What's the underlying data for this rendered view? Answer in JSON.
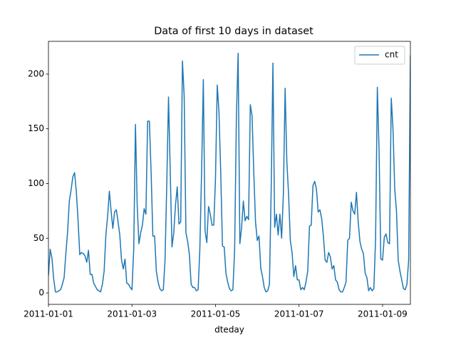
{
  "chart_data": {
    "type": "line",
    "title": "Data of first 10 days in dataset",
    "x_label": "dteday",
    "x": [
      "2011-01-01 00:00",
      "2011-01-01 01:00",
      "2011-01-01 02:00",
      "2011-01-01 03:00",
      "2011-01-01 04:00",
      "2011-01-01 05:00",
      "2011-01-01 06:00",
      "2011-01-01 07:00",
      "2011-01-01 08:00",
      "2011-01-01 09:00",
      "2011-01-01 10:00",
      "2011-01-01 11:00",
      "2011-01-01 12:00",
      "2011-01-01 13:00",
      "2011-01-01 14:00",
      "2011-01-01 15:00",
      "2011-01-01 16:00",
      "2011-01-01 17:00",
      "2011-01-01 18:00",
      "2011-01-01 19:00",
      "2011-01-01 20:00",
      "2011-01-01 21:00",
      "2011-01-01 22:00",
      "2011-01-01 23:00",
      "2011-01-02 00:00",
      "2011-01-02 01:00",
      "2011-01-02 02:00",
      "2011-01-02 03:00",
      "2011-01-02 04:00",
      "2011-01-02 05:00",
      "2011-01-02 06:00",
      "2011-01-02 07:00",
      "2011-01-02 08:00",
      "2011-01-02 09:00",
      "2011-01-02 10:00",
      "2011-01-02 11:00",
      "2011-01-02 12:00",
      "2011-01-02 13:00",
      "2011-01-02 14:00",
      "2011-01-02 15:00",
      "2011-01-02 16:00",
      "2011-01-02 17:00",
      "2011-01-02 18:00",
      "2011-01-02 19:00",
      "2011-01-02 20:00",
      "2011-01-02 21:00",
      "2011-01-02 22:00",
      "2011-01-02 23:00",
      "2011-01-03 00:00",
      "2011-01-03 01:00",
      "2011-01-03 02:00",
      "2011-01-03 03:00",
      "2011-01-03 04:00",
      "2011-01-03 05:00",
      "2011-01-03 06:00",
      "2011-01-03 07:00",
      "2011-01-03 08:00",
      "2011-01-03 09:00",
      "2011-01-03 10:00",
      "2011-01-03 11:00",
      "2011-01-03 12:00",
      "2011-01-03 13:00",
      "2011-01-03 14:00",
      "2011-01-03 15:00",
      "2011-01-03 16:00",
      "2011-01-03 17:00",
      "2011-01-03 18:00",
      "2011-01-03 19:00",
      "2011-01-03 20:00",
      "2011-01-03 21:00",
      "2011-01-03 22:00",
      "2011-01-03 23:00",
      "2011-01-04 00:00",
      "2011-01-04 01:00",
      "2011-01-04 02:00",
      "2011-01-04 03:00",
      "2011-01-04 04:00",
      "2011-01-04 05:00",
      "2011-01-04 06:00",
      "2011-01-04 07:00",
      "2011-01-04 08:00",
      "2011-01-04 09:00",
      "2011-01-04 10:00",
      "2011-01-04 11:00",
      "2011-01-04 12:00",
      "2011-01-04 13:00",
      "2011-01-04 14:00",
      "2011-01-04 15:00",
      "2011-01-04 16:00",
      "2011-01-04 17:00",
      "2011-01-04 18:00",
      "2011-01-04 19:00",
      "2011-01-04 20:00",
      "2011-01-04 21:00",
      "2011-01-04 22:00",
      "2011-01-04 23:00",
      "2011-01-05 00:00",
      "2011-01-05 01:00",
      "2011-01-05 02:00",
      "2011-01-05 03:00",
      "2011-01-05 04:00",
      "2011-01-05 05:00",
      "2011-01-05 06:00",
      "2011-01-05 07:00",
      "2011-01-05 08:00",
      "2011-01-05 09:00",
      "2011-01-05 10:00",
      "2011-01-05 11:00",
      "2011-01-05 12:00",
      "2011-01-05 13:00",
      "2011-01-05 14:00",
      "2011-01-05 15:00",
      "2011-01-05 16:00",
      "2011-01-05 17:00",
      "2011-01-05 18:00",
      "2011-01-05 19:00",
      "2011-01-05 20:00",
      "2011-01-05 21:00",
      "2011-01-05 22:00",
      "2011-01-05 23:00",
      "2011-01-06 00:00",
      "2011-01-06 01:00",
      "2011-01-06 02:00",
      "2011-01-06 03:00",
      "2011-01-06 04:00",
      "2011-01-06 05:00",
      "2011-01-06 06:00",
      "2011-01-06 07:00",
      "2011-01-06 08:00",
      "2011-01-06 09:00",
      "2011-01-06 10:00",
      "2011-01-06 11:00",
      "2011-01-06 12:00",
      "2011-01-06 13:00",
      "2011-01-06 14:00",
      "2011-01-06 15:00",
      "2011-01-06 16:00",
      "2011-01-06 17:00",
      "2011-01-06 18:00",
      "2011-01-06 19:00",
      "2011-01-06 20:00",
      "2011-01-06 21:00",
      "2011-01-06 22:00",
      "2011-01-06 23:00",
      "2011-01-07 00:00",
      "2011-01-07 01:00",
      "2011-01-07 02:00",
      "2011-01-07 03:00",
      "2011-01-07 04:00",
      "2011-01-07 05:00",
      "2011-01-07 06:00",
      "2011-01-07 07:00",
      "2011-01-07 08:00",
      "2011-01-07 09:00",
      "2011-01-07 10:00",
      "2011-01-07 11:00",
      "2011-01-07 12:00",
      "2011-01-07 13:00",
      "2011-01-07 14:00",
      "2011-01-07 15:00",
      "2011-01-07 16:00",
      "2011-01-07 17:00",
      "2011-01-07 18:00",
      "2011-01-07 19:00",
      "2011-01-07 20:00",
      "2011-01-07 21:00",
      "2011-01-07 22:00",
      "2011-01-07 23:00",
      "2011-01-08 00:00",
      "2011-01-08 01:00",
      "2011-01-08 02:00",
      "2011-01-08 03:00",
      "2011-01-08 04:00",
      "2011-01-08 05:00",
      "2011-01-08 06:00",
      "2011-01-08 07:00",
      "2011-01-08 08:00",
      "2011-01-08 09:00",
      "2011-01-08 10:00",
      "2011-01-08 11:00",
      "2011-01-08 12:00",
      "2011-01-08 13:00",
      "2011-01-08 14:00",
      "2011-01-08 15:00",
      "2011-01-08 16:00",
      "2011-01-08 17:00",
      "2011-01-08 18:00",
      "2011-01-08 19:00",
      "2011-01-08 20:00",
      "2011-01-08 21:00",
      "2011-01-08 22:00",
      "2011-01-08 23:00",
      "2011-01-09 00:00",
      "2011-01-09 01:00",
      "2011-01-09 02:00",
      "2011-01-09 03:00",
      "2011-01-09 04:00",
      "2011-01-09 05:00",
      "2011-01-09 06:00",
      "2011-01-09 07:00",
      "2011-01-09 08:00",
      "2011-01-09 09:00",
      "2011-01-09 10:00",
      "2011-01-09 11:00",
      "2011-01-09 12:00",
      "2011-01-09 13:00",
      "2011-01-09 14:00",
      "2011-01-09 15:00",
      "2011-01-09 16:00"
    ],
    "series": [
      {
        "name": "cnt",
        "color": "#1f77b4",
        "values": [
          16,
          40,
          32,
          13,
          1,
          1,
          2,
          3,
          8,
          14,
          36,
          56,
          84,
          94,
          106,
          110,
          93,
          67,
          35,
          37,
          36,
          34,
          28,
          39,
          17,
          17,
          9,
          6,
          3,
          2,
          1,
          8,
          20,
          53,
          70,
          93,
          75,
          59,
          74,
          76,
          65,
          53,
          30,
          22,
          31,
          9,
          8,
          5,
          3,
          40,
          154,
          80,
          45,
          55,
          62,
          77,
          72,
          157,
          157,
          110,
          52,
          52,
          20,
          10,
          4,
          2,
          3,
          30,
          100,
          179,
          110,
          42,
          55,
          80,
          97,
          63,
          65,
          212,
          180,
          55,
          47,
          35,
          8,
          5,
          5,
          2,
          3,
          40,
          110,
          195,
          57,
          46,
          79,
          72,
          62,
          62,
          105,
          190,
          165,
          110,
          43,
          42,
          18,
          10,
          4,
          2,
          3,
          40,
          160,
          219,
          45,
          60,
          84,
          66,
          70,
          67,
          172,
          162,
          110,
          65,
          48,
          52,
          23,
          15,
          5,
          1,
          2,
          8,
          95,
          210,
          60,
          72,
          53,
          72,
          50,
          90,
          187,
          120,
          90,
          48,
          37,
          15,
          25,
          12,
          12,
          3,
          5,
          3,
          10,
          20,
          61,
          62,
          98,
          102,
          95,
          74,
          76,
          68,
          52,
          30,
          28,
          37,
          33,
          22,
          25,
          12,
          10,
          3,
          1,
          1,
          5,
          10,
          48,
          50,
          83,
          75,
          72,
          92,
          65,
          47,
          40,
          36,
          18,
          14,
          2,
          5,
          2,
          4,
          50,
          188,
          130,
          31,
          30,
          51,
          54,
          46,
          45,
          178,
          150,
          95,
          75,
          30,
          20,
          12,
          4,
          3,
          8,
          30,
          217
        ]
      }
    ],
    "xlim": [
      "2011-01-01 00:00",
      "2011-01-09 16:00"
    ],
    "xticks": [
      "2011-01-01",
      "2011-01-03",
      "2011-01-05",
      "2011-01-07",
      "2011-01-09"
    ],
    "ylim": [
      -10.4,
      229.9
    ],
    "yticks": [
      0,
      50,
      100,
      150,
      200
    ],
    "legend": "upper right",
    "grid": false
  }
}
